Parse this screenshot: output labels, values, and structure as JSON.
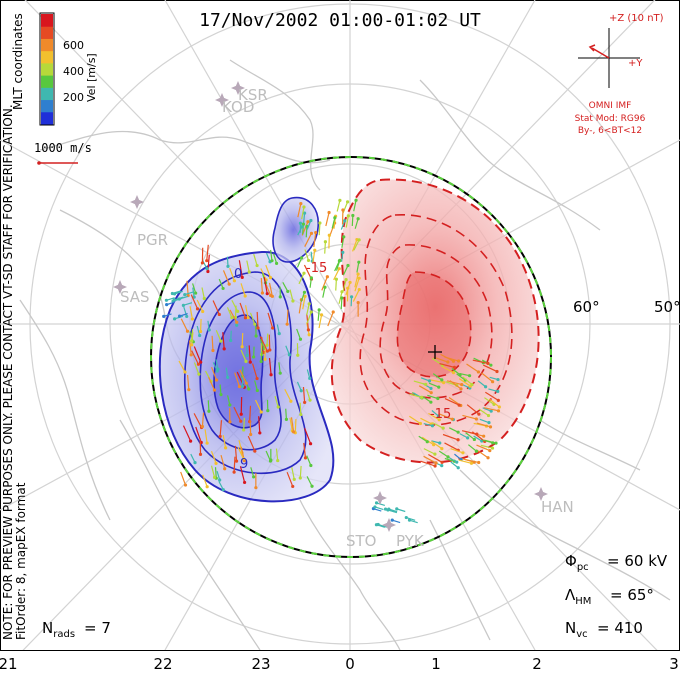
{
  "chart_data": {
    "type": "scatter",
    "title": "17/Nov/2002 01:00-01:02 UT",
    "projection": "MLT polar map",
    "colorbar": {
      "label": "Vel [m/s]",
      "ticks": [
        200,
        400,
        600
      ],
      "colors": [
        "#1f2fd8",
        "#2f7fcf",
        "#3fb8b0",
        "#58c83e",
        "#b7d93a",
        "#f2c02e",
        "#f08a2a",
        "#e64a23",
        "#d8161e"
      ]
    },
    "velocity_scale": "1000 m/s",
    "coordinates_label": "MLT coordinates",
    "latitude_labels": [
      "60°",
      "50°"
    ],
    "mlt_axis": [
      "21",
      "22",
      "23",
      "0",
      "1",
      "2",
      "3"
    ],
    "stations": [
      "KSR",
      "KOD",
      "PGR",
      "SAS",
      "HAN",
      "STO",
      "PYK"
    ],
    "imf": {
      "z_label": "+Z (10 nT)",
      "y_label": "+Y",
      "source": "OMNI IMF",
      "model_line1": "Stat Mod: RG96",
      "model_line2": "By-, 6<BT<12"
    },
    "stats": {
      "phi_pc": "= 60 kV",
      "lambda_hm": "= 65°",
      "n_vc": "= 410",
      "n_rads": "= 7"
    },
    "contour_labels": [
      "0",
      "9",
      "9",
      "-15",
      "-15"
    ],
    "side_notes": {
      "line1": "NOTE: FOR PREVIEW PURPOSES ONLY. PLEASE CONTACT VT-SD STAFF FOR VERIFICATION.",
      "line2": "FitOrder: 8, mapEX format"
    },
    "colors": {
      "negative_cell": "#2a2ac0",
      "positive_cell": "#d42020",
      "boundary": "#5ad23c",
      "grid": "#d3d3d3",
      "coast": "#c8c8c8"
    }
  }
}
